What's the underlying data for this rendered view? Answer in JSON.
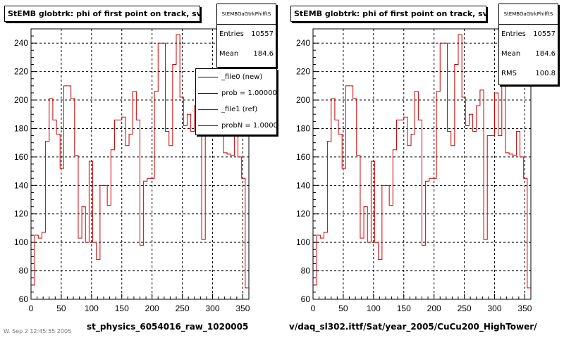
{
  "colors": {
    "histogram": "#cc0000",
    "reference_line": "#000000",
    "grid": "#000000"
  },
  "chart_data": [
    {
      "type": "line",
      "title": "StEMB globtrk: phi of first point on track, svt",
      "xlabel": "st_physics_6054016_raw_1020005",
      "xlim": [
        0,
        360
      ],
      "ylim": [
        60,
        250
      ],
      "x_ticks": [
        0,
        50,
        100,
        150,
        200,
        250,
        300,
        350
      ],
      "y_ticks": [
        60,
        80,
        100,
        120,
        140,
        160,
        180,
        200,
        220,
        240
      ],
      "grid": true,
      "series": [
        {
          "name": "_file1 (ref)",
          "bins": 100,
          "values": [
            70,
            105,
            103,
            107,
            171,
            201,
            186,
            176,
            152,
            210,
            210,
            201,
            161,
            103,
            125,
            100,
            157,
            100,
            88,
            140,
            140,
            126,
            165,
            186,
            186,
            188,
            168,
            176,
            206,
            186,
            98,
            143,
            145,
            145,
            206,
            240,
            240,
            178,
            168,
            225,
            246,
            202,
            182,
            190,
            178,
            196,
            207,
            102,
            175,
            175,
            205,
            175,
            210,
            163,
            162,
            161,
            178,
            160,
            145,
            68
          ]
        }
      ],
      "legend": {
        "position": "top-right",
        "entries": [
          {
            "label": "_file0 (new)",
            "color": "#000000"
          },
          {
            "label": "prob = 1.000000",
            "color": "#000000"
          },
          {
            "label": "_file1 (ref)",
            "color": "#cc0000"
          },
          {
            "label": "probN = 1.000000",
            "color": "#cc0000"
          }
        ]
      },
      "stats": {
        "header": "StEMBGaGtrkPhifftS",
        "entries_label": "Entries",
        "entries": "10557",
        "mean_label": "Mean",
        "mean": "184.6"
      }
    },
    {
      "type": "line",
      "title": "StEMB globtrk: phi of first point on track, svt",
      "xlabel": "v/daq_sl302.ittf/Sat/year_2005/CuCu200_HighTower/",
      "xlim": [
        0,
        360
      ],
      "ylim": [
        60,
        250
      ],
      "x_ticks": [
        0,
        50,
        100,
        150,
        200,
        250,
        300,
        350
      ],
      "y_ticks": [
        60,
        80,
        100,
        120,
        140,
        160,
        180,
        200,
        220,
        240
      ],
      "grid": true,
      "series": [
        {
          "bins": 100,
          "values": [
            70,
            105,
            103,
            107,
            171,
            201,
            186,
            176,
            152,
            210,
            210,
            201,
            161,
            103,
            125,
            100,
            157,
            100,
            88,
            140,
            140,
            126,
            165,
            186,
            186,
            188,
            168,
            176,
            206,
            186,
            98,
            143,
            145,
            145,
            206,
            240,
            240,
            178,
            168,
            225,
            246,
            202,
            182,
            190,
            178,
            196,
            207,
            102,
            175,
            175,
            205,
            175,
            210,
            163,
            162,
            161,
            178,
            160,
            145,
            68
          ]
        }
      ],
      "stats": {
        "header": "StEMBGaGtrkPhifftS",
        "entries_label": "Entries",
        "entries": "10557",
        "mean_label": "Mean",
        "mean": "184.6",
        "rms_label": "RMS",
        "rms": "100.8"
      }
    }
  ],
  "footer_text": "W. Sep 2 12:45:55 2005"
}
